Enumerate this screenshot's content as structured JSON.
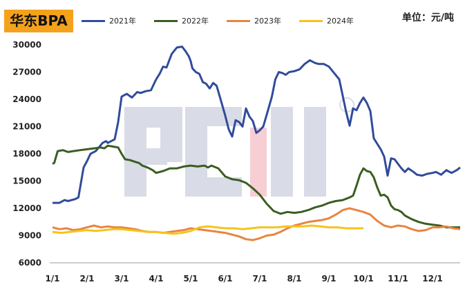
{
  "chart_data": {
    "type": "line",
    "title": "华东BPA",
    "unit_label": "单位：元/吨",
    "watermark": "ACMI",
    "x_ticks": [
      "1/1",
      "2/1",
      "3/1",
      "4/1",
      "5/1",
      "6/1",
      "7/1",
      "8/1",
      "9/1",
      "10/1",
      "11/1",
      "12/1"
    ],
    "y_ticks": [
      6000,
      9000,
      12000,
      15000,
      18000,
      21000,
      24000,
      27000,
      30000
    ],
    "ylim": [
      6000,
      30000
    ],
    "xlim": [
      0,
      11.8
    ],
    "legend_position": "top",
    "series": [
      {
        "name": "2021年",
        "color": "#2f4b9b",
        "x": [
          0,
          0.2,
          0.35,
          0.45,
          0.55,
          0.65,
          0.75,
          0.9,
          1.0,
          1.1,
          1.25,
          1.45,
          1.5,
          1.55,
          1.6,
          1.7,
          1.8,
          1.9,
          2.0,
          2.15,
          2.3,
          2.45,
          2.55,
          2.7,
          2.85,
          3.0,
          3.1,
          3.2,
          3.3,
          3.45,
          3.6,
          3.75,
          3.85,
          3.95,
          4.0,
          4.05,
          4.15,
          4.25,
          4.35,
          4.45,
          4.55,
          4.65,
          4.75,
          4.85,
          5.0,
          5.1,
          5.2,
          5.3,
          5.4,
          5.5,
          5.6,
          5.7,
          5.8,
          5.9,
          6.0,
          6.1,
          6.2,
          6.35,
          6.45,
          6.55,
          6.65,
          6.75,
          6.85,
          7.0,
          7.15,
          7.3,
          7.45,
          7.6,
          7.7,
          7.85,
          8.0,
          8.15,
          8.3,
          8.4,
          8.5,
          8.6,
          8.7,
          8.8,
          8.9,
          9.0,
          9.1,
          9.2,
          9.3,
          9.4,
          9.5,
          9.6,
          9.7,
          9.8,
          9.9,
          10.0,
          10.1,
          10.2,
          10.3,
          10.45,
          10.55,
          10.7,
          10.85,
          11.0,
          11.1,
          11.25,
          11.4,
          11.55,
          11.7,
          11.8
        ],
        "y": [
          12600,
          12600,
          12900,
          12800,
          12900,
          13000,
          13200,
          16500,
          17200,
          18000,
          18300,
          19200,
          19300,
          19400,
          19200,
          19400,
          19600,
          21500,
          24300,
          24600,
          24200,
          24800,
          24700,
          24900,
          25000,
          26200,
          26800,
          27600,
          27500,
          29000,
          29700,
          29800,
          29300,
          28700,
          28200,
          27400,
          27000,
          26800,
          25900,
          25700,
          25200,
          25800,
          25500,
          24200,
          22200,
          20700,
          19900,
          21700,
          21500,
          21000,
          23000,
          22100,
          21600,
          20300,
          20600,
          21000,
          22300,
          24300,
          26200,
          27000,
          26900,
          26700,
          27000,
          27100,
          27300,
          27900,
          28300,
          28000,
          27900,
          27900,
          27600,
          26900,
          26200,
          24400,
          22600,
          21100,
          23000,
          22800,
          23600,
          24200,
          23600,
          22700,
          19700,
          19100,
          18500,
          17700,
          15600,
          17500,
          17400,
          16900,
          16400,
          16000,
          16400,
          16000,
          15700,
          15600,
          15800,
          15900,
          16000,
          15700,
          16200,
          15900,
          16200,
          16500
        ]
      },
      {
        "name": "2022年",
        "color": "#3a5d21",
        "x": [
          0,
          0.05,
          0.15,
          0.3,
          0.45,
          0.6,
          0.8,
          1.0,
          1.2,
          1.4,
          1.5,
          1.6,
          1.75,
          1.9,
          2.0,
          2.1,
          2.25,
          2.4,
          2.5,
          2.6,
          2.75,
          2.9,
          3.0,
          3.2,
          3.4,
          3.6,
          3.8,
          4.0,
          4.2,
          4.4,
          4.5,
          4.6,
          4.8,
          5.0,
          5.2,
          5.4,
          5.6,
          5.8,
          6.0,
          6.2,
          6.4,
          6.6,
          6.8,
          7.0,
          7.2,
          7.4,
          7.6,
          7.8,
          8.0,
          8.2,
          8.4,
          8.6,
          8.7,
          8.8,
          8.9,
          9.0,
          9.1,
          9.2,
          9.3,
          9.4,
          9.5,
          9.6,
          9.7,
          9.8,
          9.9,
          10.0,
          10.1,
          10.2,
          10.4,
          10.6,
          10.8,
          11.0,
          11.2,
          11.4,
          11.6,
          11.8
        ],
        "y": [
          16900,
          17000,
          18300,
          18400,
          18200,
          18300,
          18400,
          18500,
          18600,
          18700,
          18600,
          18900,
          18800,
          18700,
          18000,
          17400,
          17300,
          17100,
          17000,
          16700,
          16500,
          16200,
          15900,
          16100,
          16400,
          16400,
          16600,
          16700,
          16600,
          16700,
          16500,
          16700,
          16400,
          15500,
          15200,
          15100,
          14800,
          14200,
          13500,
          12500,
          11700,
          11400,
          11600,
          11500,
          11600,
          11800,
          12100,
          12300,
          12600,
          12800,
          12900,
          13200,
          13400,
          14500,
          15700,
          16400,
          16100,
          16000,
          15400,
          14300,
          13400,
          13500,
          13200,
          12300,
          11900,
          11800,
          11600,
          11200,
          10800,
          10500,
          10300,
          10200,
          10100,
          9900,
          9900,
          9900
        ]
      },
      {
        "name": "2023年",
        "color": "#e8843f",
        "x": [
          0,
          0.2,
          0.4,
          0.6,
          0.8,
          1.0,
          1.2,
          1.4,
          1.6,
          1.8,
          2.0,
          2.2,
          2.4,
          2.6,
          2.8,
          3.0,
          3.2,
          3.4,
          3.6,
          3.8,
          4.0,
          4.2,
          4.4,
          4.6,
          4.8,
          5.0,
          5.2,
          5.4,
          5.6,
          5.8,
          6.0,
          6.2,
          6.4,
          6.6,
          6.8,
          7.0,
          7.2,
          7.4,
          7.6,
          7.8,
          8.0,
          8.2,
          8.4,
          8.6,
          8.8,
          9.0,
          9.2,
          9.4,
          9.6,
          9.8,
          10.0,
          10.2,
          10.4,
          10.6,
          10.8,
          11.0,
          11.2,
          11.4,
          11.6,
          11.8
        ],
        "y": [
          9900,
          9700,
          9800,
          9600,
          9700,
          9900,
          10100,
          9900,
          10000,
          9900,
          9900,
          9800,
          9700,
          9500,
          9400,
          9400,
          9300,
          9400,
          9500,
          9600,
          9800,
          9700,
          9600,
          9500,
          9400,
          9300,
          9100,
          8900,
          8600,
          8500,
          8700,
          9000,
          9100,
          9400,
          9800,
          10100,
          10300,
          10500,
          10600,
          10700,
          10900,
          11300,
          11800,
          12000,
          11800,
          11600,
          11300,
          10600,
          10100,
          9900,
          10100,
          10000,
          9700,
          9500,
          9600,
          9900,
          9900,
          10000,
          9800,
          9700
        ]
      },
      {
        "name": "2024年",
        "color": "#f6c31c",
        "x": [
          0,
          0.25,
          0.5,
          0.75,
          1.0,
          1.25,
          1.5,
          1.75,
          2.0,
          2.25,
          2.5,
          2.75,
          3.0,
          3.25,
          3.5,
          3.75,
          4.0,
          4.25,
          4.5,
          4.75,
          5.0,
          5.25,
          5.5,
          5.75,
          6.0,
          6.25,
          6.5,
          6.75,
          7.0,
          7.25,
          7.5,
          7.75,
          8.0,
          8.25,
          8.5,
          8.75,
          9.0
        ],
        "y": [
          9400,
          9300,
          9400,
          9500,
          9600,
          9500,
          9600,
          9700,
          9700,
          9600,
          9500,
          9400,
          9400,
          9300,
          9200,
          9300,
          9500,
          9900,
          10000,
          9900,
          9800,
          9800,
          9700,
          9800,
          9900,
          9900,
          9900,
          10000,
          10000,
          10000,
          10100,
          10000,
          9900,
          9900,
          9800,
          9800,
          9800
        ]
      }
    ]
  }
}
